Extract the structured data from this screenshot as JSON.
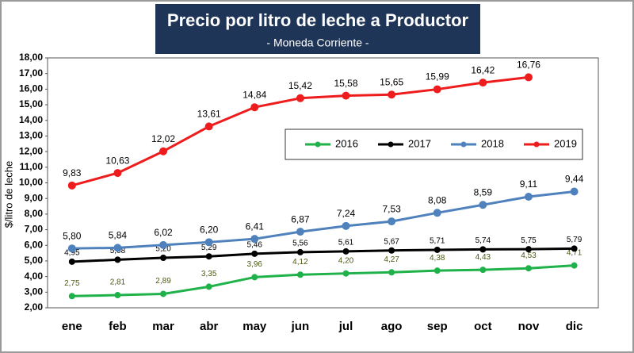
{
  "chart_data": {
    "type": "line",
    "title": "Precio por litro de leche a Productor",
    "subtitle": "- Moneda Corriente -",
    "y_label": "$/litro de leche",
    "categories": [
      "ene",
      "feb",
      "mar",
      "abr",
      "may",
      "jun",
      "jul",
      "ago",
      "sep",
      "oct",
      "nov",
      "dic"
    ],
    "series": [
      {
        "name": "2016",
        "color": "#1fb24a",
        "values": [
          2.75,
          2.81,
          2.89,
          3.35,
          3.96,
          4.12,
          4.2,
          4.27,
          4.38,
          4.43,
          4.53,
          4.71
        ],
        "value_labels": [
          "2,75",
          "2,81",
          "2,89",
          "3,35",
          "3,96",
          "4,12",
          "4,20",
          "4,27",
          "4,38",
          "4,43",
          "4,53",
          "4,71"
        ]
      },
      {
        "name": "2017",
        "color": "#000000",
        "values": [
          4.95,
          5.08,
          5.2,
          5.29,
          5.46,
          5.56,
          5.61,
          5.67,
          5.71,
          5.74,
          5.75,
          5.79
        ],
        "value_labels": [
          "4,95",
          "5,08",
          "5,20",
          "5,29",
          "5,46",
          "5,56",
          "5,61",
          "5,67",
          "5,71",
          "5,74",
          "5,75",
          "5,79"
        ]
      },
      {
        "name": "2018",
        "color": "#4f81bd",
        "values": [
          5.8,
          5.84,
          6.02,
          6.2,
          6.41,
          6.87,
          7.24,
          7.53,
          8.08,
          8.59,
          9.11,
          9.44
        ],
        "value_labels": [
          "5,80",
          "5,84",
          "6,02",
          "6,20",
          "6,41",
          "6,87",
          "7,24",
          "7,53",
          "8,08",
          "8,59",
          "9,11",
          "9,44"
        ]
      },
      {
        "name": "2019",
        "color": "#ee1c1c",
        "values": [
          9.83,
          10.63,
          12.02,
          13.61,
          14.84,
          15.42,
          15.58,
          15.65,
          15.99,
          16.42,
          16.76,
          null
        ],
        "value_labels": [
          "9,83",
          "10,63",
          "12,02",
          "13,61",
          "14,84",
          "15,42",
          "15,58",
          "15,65",
          "15,99",
          "16,42",
          "16,76",
          null
        ]
      }
    ],
    "ylim": [
      2,
      18
    ],
    "yticks": [
      {
        "value": 2,
        "label": "2,00"
      },
      {
        "value": 3,
        "label": "3,00"
      },
      {
        "value": 4,
        "label": "4,00"
      },
      {
        "value": 5,
        "label": "5,00"
      },
      {
        "value": 6,
        "label": "6,00"
      },
      {
        "value": 7,
        "label": "7,00"
      },
      {
        "value": 8,
        "label": "8,00"
      },
      {
        "value": 9,
        "label": "9,00"
      },
      {
        "value": 10,
        "label": "10,00"
      },
      {
        "value": 11,
        "label": "11,00"
      },
      {
        "value": 12,
        "label": "12,00"
      },
      {
        "value": 13,
        "label": "13,00"
      },
      {
        "value": 14,
        "label": "14,00"
      },
      {
        "value": 15,
        "label": "15,00"
      },
      {
        "value": 16,
        "label": "16,00"
      },
      {
        "value": 17,
        "label": "17,00"
      },
      {
        "value": 18,
        "label": "18,00"
      }
    ],
    "grid": false,
    "legend": "upper right"
  }
}
